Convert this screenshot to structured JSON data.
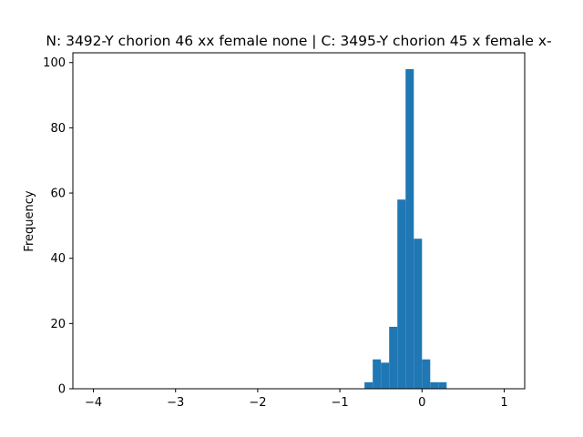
{
  "chart_data": {
    "type": "bar",
    "title": "N: 3492-Y chorion 46 xx female none | C: 3495-Y chorion 45 x female x-",
    "xlabel": "",
    "ylabel": "Frequency",
    "xlim": [
      -4.25,
      1.25
    ],
    "ylim": [
      0,
      103
    ],
    "xticks": [
      -4,
      -3,
      -2,
      -1,
      0,
      1
    ],
    "xtick_labels": [
      "−4",
      "−3",
      "−2",
      "−1",
      "0",
      "1"
    ],
    "yticks": [
      0,
      20,
      40,
      60,
      80,
      100
    ],
    "ytick_labels": [
      "0",
      "20",
      "40",
      "60",
      "80",
      "100"
    ],
    "bin_width": 0.1,
    "series": [
      {
        "color": "#1f77b4",
        "bins": [
          {
            "start": -0.7,
            "count": 2
          },
          {
            "start": -0.6,
            "count": 9
          },
          {
            "start": -0.5,
            "count": 8
          },
          {
            "start": -0.4,
            "count": 19
          },
          {
            "start": -0.3,
            "count": 58
          },
          {
            "start": -0.2,
            "count": 98
          },
          {
            "start": -0.1,
            "count": 46
          },
          {
            "start": 0.0,
            "count": 9
          },
          {
            "start": 0.1,
            "count": 2
          },
          {
            "start": 0.2,
            "count": 2
          }
        ]
      }
    ],
    "grid": false,
    "legend": null
  }
}
